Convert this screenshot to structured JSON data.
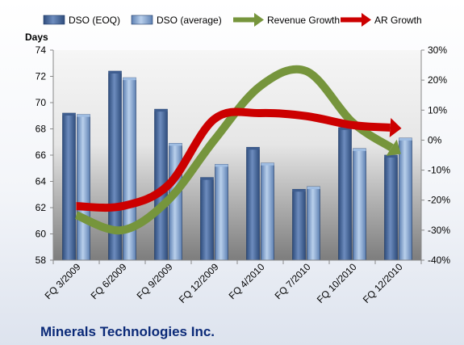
{
  "chart_data": {
    "type": "bar",
    "title": "Minerals Technologies Inc.",
    "y_units_label": "Days",
    "categories": [
      "FQ 3/2009",
      "FQ 6/2009",
      "FQ 9/2009",
      "FQ 12/2009",
      "FQ 4/2010",
      "FQ 7/2010",
      "FQ 10/2010",
      "FQ 12/2010"
    ],
    "left_axis": {
      "ylim": [
        58,
        74
      ],
      "ticks": [
        58,
        60,
        62,
        64,
        66,
        68,
        70,
        72,
        74
      ]
    },
    "right_axis": {
      "ylim": [
        -40,
        30
      ],
      "ticks": [
        -40,
        -30,
        -20,
        -10,
        0,
        10,
        20,
        30
      ],
      "tick_labels": [
        "-40%",
        "-30%",
        "-20%",
        "-10%",
        "0%",
        "10%",
        "20%",
        "30%"
      ]
    },
    "series": [
      {
        "name": "DSO (EOQ)",
        "axis": "left",
        "type": "bar",
        "color": "#4a6a9c",
        "values": [
          69.2,
          72.4,
          69.5,
          64.3,
          66.6,
          63.4,
          68.1,
          66.0
        ]
      },
      {
        "name": "DSO (average)",
        "axis": "left",
        "type": "bar",
        "color": "#86aad4",
        "values": [
          69.1,
          71.9,
          66.9,
          65.3,
          65.4,
          63.6,
          66.5,
          67.3
        ]
      },
      {
        "name": "Revenue Growth",
        "axis": "right",
        "type": "line",
        "color": "#76953c",
        "values": [
          -25,
          -30,
          -20,
          0,
          18,
          23,
          6,
          -4
        ]
      },
      {
        "name": "AR Growth",
        "axis": "right",
        "type": "line",
        "color": "#cc0000",
        "values": [
          -22,
          -22,
          -15,
          7,
          9,
          8,
          5,
          4
        ]
      }
    ],
    "grid": false,
    "legend_position": "top"
  }
}
